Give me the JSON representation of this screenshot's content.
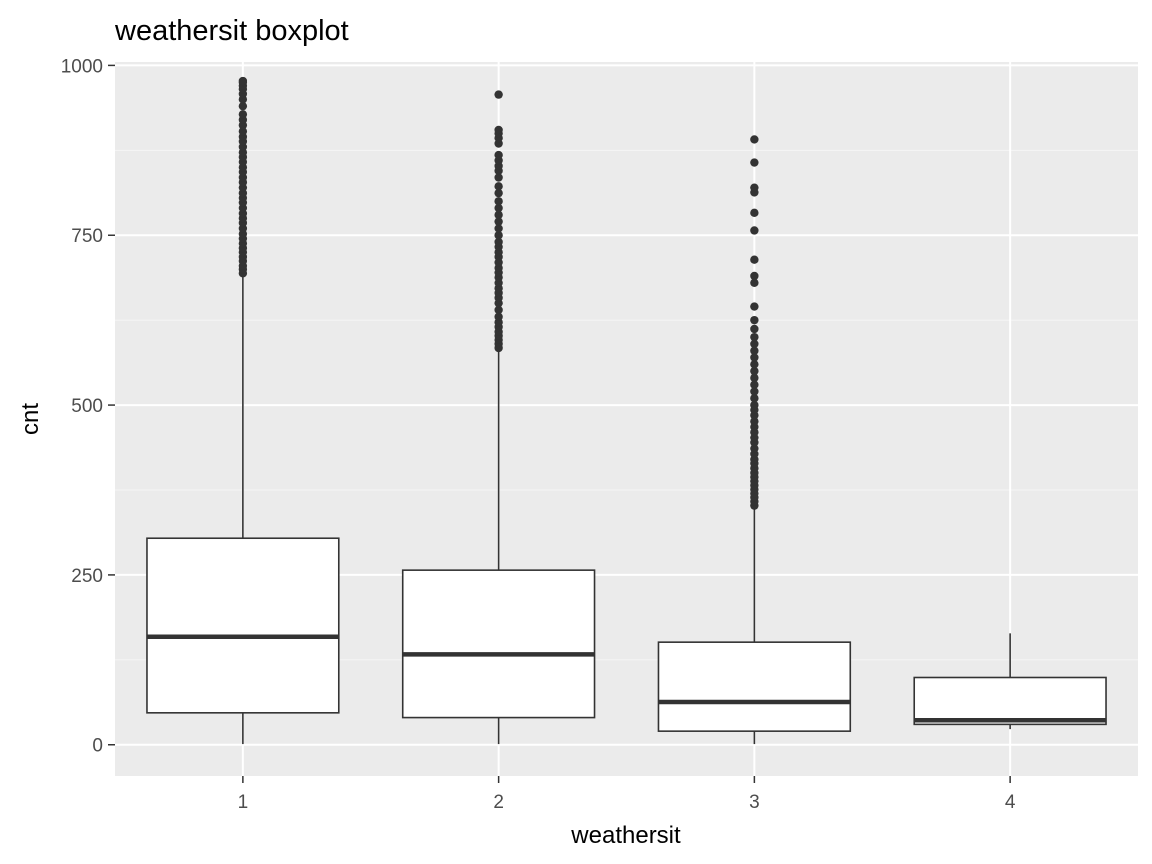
{
  "chart_data": {
    "type": "boxplot",
    "title": "weathersit boxplot",
    "xlabel": "weathersit",
    "ylabel": "cnt",
    "ylim": [
      -46,
      1005
    ],
    "yticks": [
      0,
      250,
      500,
      750,
      1000
    ],
    "grid": true,
    "legend": "none",
    "categories": [
      "1",
      "2",
      "3",
      "4"
    ],
    "boxes": [
      {
        "category": "1",
        "min": 1,
        "q1": 47,
        "median": 159,
        "q3": 304,
        "whisker_high": 690,
        "outliers": [
          694,
          700,
          705,
          712,
          718,
          725,
          731,
          738,
          745,
          752,
          760,
          768,
          775,
          782,
          790,
          798,
          805,
          812,
          820,
          828,
          835,
          843,
          850,
          858,
          865,
          872,
          880,
          888,
          895,
          903,
          912,
          920,
          928,
          940,
          950,
          958,
          965,
          970,
          975,
          977
        ]
      },
      {
        "category": "2",
        "min": 1,
        "q1": 40,
        "median": 133,
        "q3": 257,
        "whisker_high": 580,
        "outliers": [
          584,
          590,
          596,
          602,
          608,
          615,
          622,
          630,
          640,
          650,
          658,
          665,
          672,
          680,
          688,
          695,
          702,
          710,
          718,
          725,
          733,
          740,
          750,
          760,
          770,
          780,
          790,
          800,
          812,
          822,
          835,
          845,
          852,
          860,
          868,
          885,
          893,
          900,
          905,
          957
        ]
      },
      {
        "category": "3",
        "min": 1,
        "q1": 20,
        "median": 63,
        "q3": 151,
        "whisker_high": 349,
        "outliers": [
          352,
          358,
          364,
          370,
          376,
          382,
          388,
          394,
          400,
          407,
          414,
          420,
          428,
          436,
          445,
          452,
          460,
          468,
          476,
          485,
          493,
          500,
          510,
          520,
          530,
          540,
          550,
          560,
          570,
          580,
          590,
          600,
          612,
          625,
          645,
          680,
          690,
          714,
          757,
          783,
          813,
          820,
          857,
          891
        ]
      },
      {
        "category": "4",
        "min": 23,
        "q1": 30,
        "median": 36,
        "q3": 99,
        "whisker_high": 164,
        "outliers": []
      }
    ],
    "colors": {
      "panel_background": "#ebebeb",
      "grid_major": "#ffffff",
      "grid_minor": "#f5f5f5",
      "box_fill": "#ffffff",
      "line": "#333333",
      "tick_label": "#4d4d4d"
    }
  }
}
